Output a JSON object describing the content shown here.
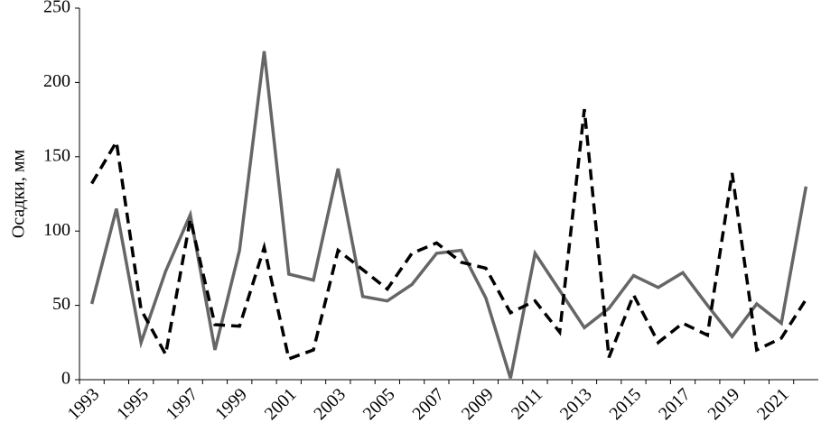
{
  "chart_data": {
    "type": "line",
    "y_label": "Осадки, мм",
    "categories": [
      "1993",
      null,
      "1995",
      null,
      "1997",
      null,
      "1999",
      null,
      "2001",
      null,
      "2003",
      null,
      "2005",
      null,
      "2007",
      null,
      "2009",
      null,
      "2011",
      null,
      "2013",
      null,
      "2015",
      null,
      "2017",
      null,
      "2019",
      null,
      "2021",
      null
    ],
    "series": [
      {
        "color": "#666666",
        "dash": false,
        "values": [
          51,
          115,
          25,
          73,
          111,
          20,
          87,
          221,
          71,
          67,
          142,
          56,
          53,
          64,
          85,
          87,
          55,
          1,
          85,
          60,
          35,
          48,
          70,
          62,
          72,
          50,
          29,
          51,
          38,
          130
        ]
      },
      {
        "color": "#000000",
        "dash": true,
        "values": [
          132,
          160,
          47,
          17,
          108,
          37,
          36,
          89,
          14,
          20,
          87,
          74,
          61,
          85,
          92,
          79,
          75,
          45,
          53,
          32,
          182,
          15,
          57,
          25,
          38,
          30,
          139,
          20,
          28,
          54
        ]
      }
    ],
    "ylim": [
      0,
      250
    ],
    "yticks": [
      0,
      50,
      100,
      150,
      200,
      250
    ],
    "grid": false
  }
}
